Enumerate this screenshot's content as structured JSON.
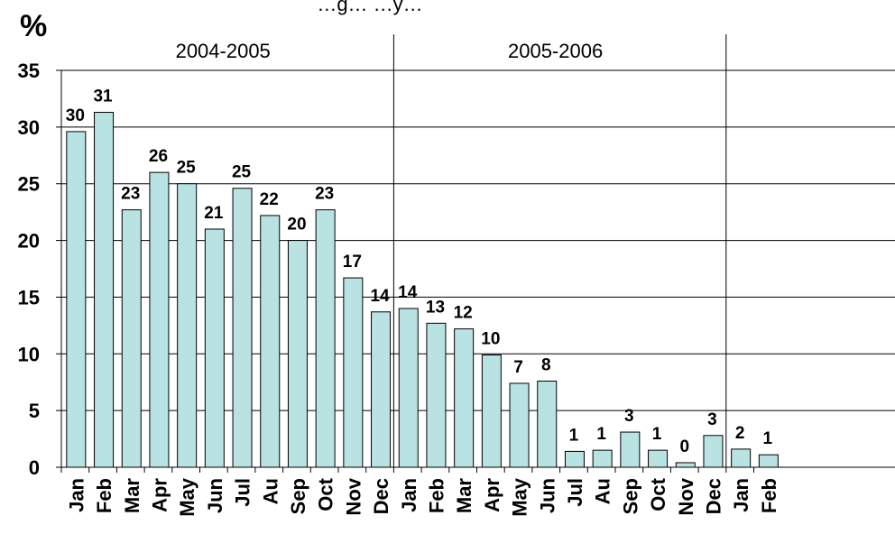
{
  "chart_data": {
    "type": "bar",
    "title": "…g… …y…",
    "ylabel": "%",
    "ylim": [
      0,
      35
    ],
    "yticks": [
      0,
      5,
      10,
      15,
      20,
      25,
      30,
      35
    ],
    "grid": true,
    "bar_color": "#b9e2e2",
    "bar_edge_color": "#000000",
    "categories": [
      "Jan",
      "Feb",
      "Mar",
      "Apr",
      "May",
      "Jun",
      "Jul",
      "Au",
      "Sep",
      "Oct",
      "Nov",
      "Dec",
      "Jan",
      "Feb",
      "Mar",
      "Apr",
      "May",
      "Jun",
      "Jul",
      "Au",
      "Sep",
      "Oct",
      "Nov",
      "Dec",
      "Jan",
      "Feb"
    ],
    "values": [
      29.6,
      31.3,
      22.7,
      26.0,
      25.0,
      21.0,
      24.6,
      22.2,
      20.0,
      22.7,
      16.7,
      13.7,
      14.0,
      12.7,
      12.2,
      9.9,
      7.4,
      7.6,
      1.4,
      1.5,
      3.1,
      1.5,
      0.4,
      2.8,
      1.6,
      1.1
    ],
    "data_labels": [
      "30",
      "31",
      "23",
      "26",
      "25",
      "21",
      "25",
      "22",
      "20",
      "23",
      "17",
      "14",
      "14",
      "13",
      "12",
      "10",
      "7",
      "8",
      "1",
      "1",
      "3",
      "1",
      "0",
      "3",
      "2",
      "1"
    ],
    "groups": [
      {
        "label": "2004-2005",
        "start": 0,
        "end": 11
      },
      {
        "label": "2005-2006",
        "start": 12,
        "end": 23
      },
      {
        "label": "",
        "start": 24,
        "end": 25
      }
    ]
  }
}
